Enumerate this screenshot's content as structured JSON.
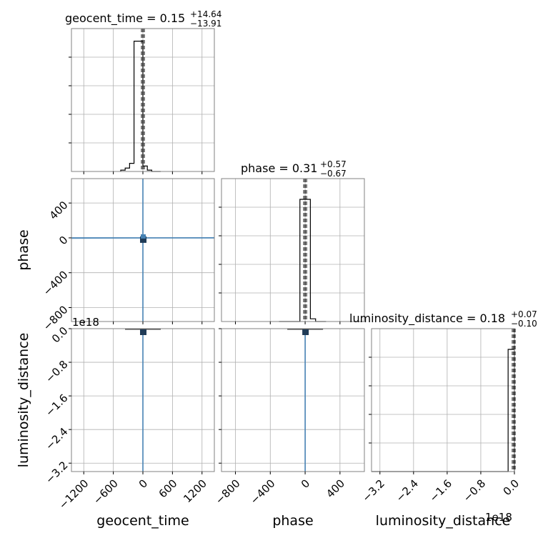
{
  "chart_data": {
    "type": "corner",
    "parameters": [
      "geocent_time",
      "phase",
      "luminosity_distance"
    ],
    "grid": true,
    "panels": {
      "geocent_time": {
        "title": {
          "main": "geocent_time = 0.15",
          "sup": "+14.64",
          "sub": "−13.91"
        },
        "median": 0.15,
        "xlim": [
          -1450,
          1450
        ],
        "hist": {
          "edges": [
            -450,
            -360,
            -270,
            -180,
            -90,
            0,
            90,
            180,
            270,
            360
          ],
          "counts": [
            0.01,
            0.025,
            0.06,
            0.96,
            0.96,
            0.04,
            0.01,
            0,
            0
          ]
        }
      },
      "phase": {
        "title": {
          "main": "phase = 0.31",
          "sup": "+0.57",
          "sub": "−0.67"
        },
        "median": 0.31,
        "xlim": [
          -960,
          680
        ],
        "hist": {
          "edges": [
            -300,
            -240,
            -180,
            -120,
            -60,
            0,
            60,
            120,
            180,
            240
          ],
          "counts": [
            0,
            0,
            0,
            0,
            0.9,
            0.9,
            0.02,
            0,
            0
          ]
        }
      },
      "luminosity_distance": {
        "title": {
          "main": "luminosity_distance = 0.18",
          "sup": "+0.07",
          "sub": "−0.10"
        },
        "median": 0.18,
        "offset": "1e18",
        "xlim": [
          -3.4,
          0.0
        ],
        "hist": {
          "edges": [
            -3.4,
            -3.2,
            -2.4,
            -1.6,
            -0.8,
            -0.15,
            0.0
          ],
          "counts": [
            0,
            0,
            0,
            0,
            0,
            0.9
          ]
        }
      }
    },
    "axes": {
      "geocent_time": {
        "label": "geocent_time",
        "ticks": [
          -1200,
          -600,
          0,
          600,
          1200
        ],
        "tick_labels": [
          "−1200",
          "−600",
          "0",
          "600",
          "1200"
        ]
      },
      "phase_x": {
        "label": "phase",
        "ticks": [
          -800,
          -400,
          0,
          400
        ],
        "tick_labels": [
          "−800",
          "−400",
          "0",
          "400"
        ]
      },
      "phase_y": {
        "label": "phase",
        "ticks": [
          400,
          0,
          -400,
          -800
        ],
        "tick_labels": [
          "400",
          "0",
          "−400",
          "−800"
        ]
      },
      "luminosity_distance_x": {
        "label": "luminosity_distance",
        "ticks": [
          -3.2,
          -2.4,
          -1.6,
          -0.8,
          0.0
        ],
        "tick_labels": [
          "−3.2",
          "−2.4",
          "−1.6",
          "−0.8",
          "0.0"
        ],
        "offset": "1e18"
      },
      "luminosity_distance_y": {
        "label": "luminosity_distance",
        "ticks": [
          0.0,
          -0.8,
          -1.6,
          -2.4,
          -3.2
        ],
        "tick_labels": [
          "0.0",
          "−0.8",
          "−1.6",
          "−2.4",
          "−3.2"
        ],
        "offset": "1e18"
      }
    },
    "ylims": {
      "phase": [
        -960,
        680
      ],
      "luminosity_distance": [
        -3.4,
        0.0
      ]
    },
    "colors": {
      "hist": "#000000",
      "scatter": "#4682b4",
      "median_line": "#000000",
      "grid": "#b0b0b0",
      "spine": "#808080"
    }
  }
}
